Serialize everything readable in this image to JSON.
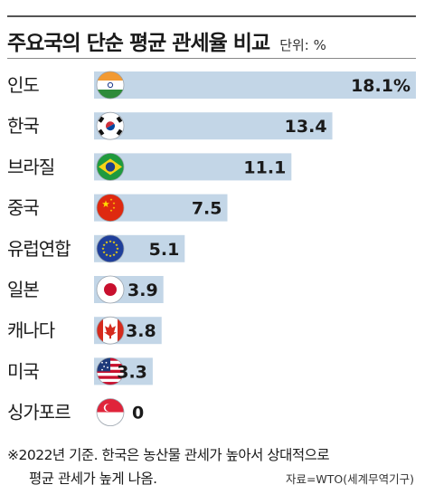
{
  "title": "주요국의 단순 평균 관세율 비교",
  "unit_label": "단위: %",
  "note_line1": "※2022년 기준. 한국은 농산물 관세가 높아서 상대적으로",
  "note_line2": "평균 관세가 높게 나옴.",
  "source": "자료=WTO(세계무역기구)",
  "colors": {
    "bar": "#c3d6e7",
    "text": "#1a1a1a"
  },
  "chart_data": {
    "type": "bar",
    "orientation": "horizontal",
    "categories": [
      "인도",
      "한국",
      "브라질",
      "중국",
      "유럽연합",
      "일본",
      "캐나다",
      "미국",
      "싱가포르"
    ],
    "values": [
      18.1,
      13.4,
      11.1,
      7.5,
      5.1,
      3.9,
      3.8,
      3.3,
      0
    ],
    "value_labels": [
      "18.1%",
      "13.4",
      "11.1",
      "7.5",
      "5.1",
      "3.9",
      "3.8",
      "3.3",
      "0"
    ],
    "flags": [
      "india-flag-icon",
      "korea-flag-icon",
      "brazil-flag-icon",
      "china-flag-icon",
      "eu-flag-icon",
      "japan-flag-icon",
      "canada-flag-icon",
      "usa-flag-icon",
      "singapore-flag-icon"
    ],
    "xlim": [
      0,
      18.1
    ],
    "grid": false,
    "legend": "none"
  }
}
